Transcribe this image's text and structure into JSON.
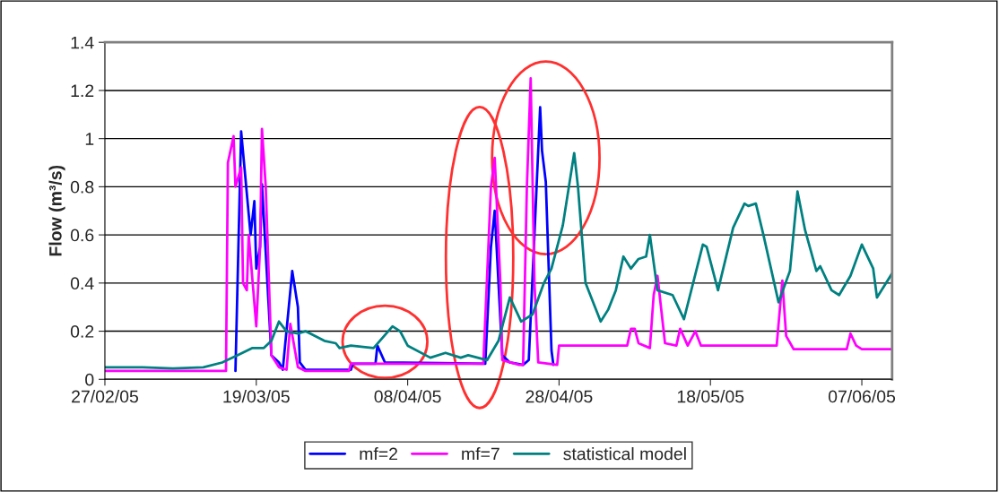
{
  "chart_data": {
    "type": "line",
    "ylabel": "Flow (m³/s)",
    "xlim": [
      "2005-02-27",
      "2005-06-11"
    ],
    "xticks": [
      {
        "value": "2005-02-27",
        "label": "27/02/05"
      },
      {
        "value": "2005-03-19",
        "label": "19/03/05"
      },
      {
        "value": "2005-04-08",
        "label": "08/04/05"
      },
      {
        "value": "2005-04-28",
        "label": "28/04/05"
      },
      {
        "value": "2005-05-18",
        "label": "18/05/05"
      },
      {
        "value": "2005-06-07",
        "label": "07/06/05"
      }
    ],
    "ylim": [
      0,
      1.4
    ],
    "yticks": [
      0,
      0.2,
      0.4,
      0.6,
      0.8,
      1,
      1.2,
      1.4
    ],
    "grid": "y",
    "legend": "bottom",
    "marker": "none",
    "line_style": "solid",
    "series": [
      {
        "name": "mf=2",
        "color": "#0000ff",
        "x": [
          "2005-03-16T06:00",
          "2005-03-17",
          "2005-03-18T06:00",
          "2005-03-18T18:00",
          "2005-03-19",
          "2005-03-19T12:00",
          "2005-03-19T18:00",
          "2005-03-21",
          "2005-03-22",
          "2005-03-22T12:00",
          "2005-03-23T18:00",
          "2005-03-24T12:00",
          "2005-03-24T18:00",
          "2005-03-25T12:00",
          "2005-03-31T12:00",
          "2005-03-31T18:00",
          "2005-04-03T18:00",
          "2005-04-04",
          "2005-04-05",
          "2005-04-18T06:00",
          "2005-04-19",
          "2005-04-19T12:00",
          "2005-04-20T12:00",
          "2005-04-21T12:00",
          "2005-04-23T06:00",
          "2005-04-24",
          "2005-04-24T18:00",
          "2005-04-25T12:00",
          "2005-04-25T18:00",
          "2005-04-26T06:00",
          "2005-04-27",
          "2005-04-27T06:00"
        ],
        "values": [
          0.035,
          1.03,
          0.6,
          0.74,
          0.46,
          0.55,
          0.81,
          0.1,
          0.07,
          0.04,
          0.45,
          0.3,
          0.07,
          0.04,
          0.04,
          0.065,
          0.065,
          0.14,
          0.07,
          0.065,
          0.55,
          0.7,
          0.1,
          0.07,
          0.06,
          0.08,
          0.6,
          1.13,
          0.95,
          0.82,
          0.12,
          0.06
        ]
      },
      {
        "name": "mf=7",
        "color": "#ff00ff",
        "x": [
          "2005-02-27",
          "2005-03-15",
          "2005-03-15T06:00",
          "2005-03-16",
          "2005-03-16T06:00",
          "2005-03-17",
          "2005-03-17T06:00",
          "2005-03-17T18:00",
          "2005-03-18",
          "2005-03-19",
          "2005-03-19T12:00",
          "2005-03-19T18:00",
          "2005-03-20T06:00",
          "2005-03-21",
          "2005-03-22",
          "2005-03-23",
          "2005-03-23T12:00",
          "2005-03-24T12:00",
          "2005-03-25T12:00",
          "2005-03-31T06:00",
          "2005-03-31T12:00",
          "2005-04-18",
          "2005-04-19",
          "2005-04-19T12:00",
          "2005-04-20T06:00",
          "2005-04-20T12:00",
          "2005-04-22T18:00",
          "2005-04-23T06:00",
          "2005-04-23T18:00",
          "2005-04-24T06:00",
          "2005-04-24T18:00",
          "2005-04-25T06:00",
          "2005-04-27T18:00",
          "2005-04-28",
          "2005-05-07",
          "2005-05-07T12:00",
          "2005-05-08",
          "2005-05-08T12:00",
          "2005-05-10",
          "2005-05-10T12:00",
          "2005-05-11",
          "2005-05-12",
          "2005-05-13T12:00",
          "2005-05-14",
          "2005-05-15",
          "2005-05-16",
          "2005-05-16T18:00",
          "2005-05-26T18:00",
          "2005-05-27T12:00",
          "2005-05-28",
          "2005-05-29",
          "2005-06-05",
          "2005-06-05T12:00",
          "2005-06-06T06:00",
          "2005-06-07",
          "2005-06-11"
        ],
        "values": [
          0.035,
          0.035,
          0.9,
          1.01,
          0.8,
          0.88,
          0.4,
          0.37,
          0.6,
          0.22,
          0.55,
          1.04,
          0.8,
          0.1,
          0.05,
          0.04,
          0.23,
          0.05,
          0.035,
          0.035,
          0.065,
          0.065,
          0.8,
          0.92,
          0.4,
          0.08,
          0.06,
          0.06,
          0.8,
          1.25,
          0.4,
          0.07,
          0.06,
          0.14,
          0.14,
          0.21,
          0.21,
          0.15,
          0.13,
          0.35,
          0.43,
          0.15,
          0.14,
          0.21,
          0.14,
          0.2,
          0.14,
          0.14,
          0.41,
          0.18,
          0.125,
          0.125,
          0.19,
          0.14,
          0.125,
          0.125
        ]
      },
      {
        "name": "statistical model",
        "color": "#008080",
        "x": [
          "2005-02-27",
          "2005-03-04",
          "2005-03-08",
          "2005-03-12",
          "2005-03-14T12:00",
          "2005-03-16T12:00",
          "2005-03-18T12:00",
          "2005-03-20",
          "2005-03-21",
          "2005-03-22",
          "2005-03-23",
          "2005-03-24T12:00",
          "2005-03-25T12:00",
          "2005-03-28",
          "2005-03-29T12:00",
          "2005-03-30",
          "2005-03-31T12:00",
          "2005-04-03T12:00",
          "2005-04-06",
          "2005-04-07",
          "2005-04-08",
          "2005-04-11",
          "2005-04-13",
          "2005-04-15",
          "2005-04-16",
          "2005-04-18T12:00",
          "2005-04-20",
          "2005-04-21T12:00",
          "2005-04-23",
          "2005-04-24T12:00",
          "2005-04-26",
          "2005-04-27",
          "2005-04-28T12:00",
          "2005-04-30",
          "2005-04-30T12:00",
          "2005-05-01T12:00",
          "2005-05-03T12:00",
          "2005-05-04T12:00",
          "2005-05-05T12:00",
          "2005-05-06T12:00",
          "2005-05-07T12:00",
          "2005-05-08T12:00",
          "2005-05-09T12:00",
          "2005-05-10",
          "2005-05-11",
          "2005-05-13",
          "2005-05-14T12:00",
          "2005-05-17",
          "2005-05-17T12:00",
          "2005-05-19",
          "2005-05-21",
          "2005-05-22T12:00",
          "2005-05-23",
          "2005-05-24",
          "2005-05-25",
          "2005-05-27",
          "2005-05-28T12:00",
          "2005-05-29T12:00",
          "2005-05-30T12:00",
          "2005-06-01",
          "2005-06-01T12:00",
          "2005-06-03",
          "2005-06-04",
          "2005-06-05T12:00",
          "2005-06-07",
          "2005-06-08T12:00",
          "2005-06-09",
          "2005-06-10",
          "2005-06-11"
        ],
        "values": [
          0.05,
          0.05,
          0.045,
          0.05,
          0.07,
          0.1,
          0.13,
          0.13,
          0.16,
          0.24,
          0.2,
          0.19,
          0.2,
          0.16,
          0.15,
          0.13,
          0.14,
          0.13,
          0.22,
          0.2,
          0.14,
          0.09,
          0.11,
          0.09,
          0.1,
          0.08,
          0.16,
          0.34,
          0.24,
          0.27,
          0.4,
          0.46,
          0.64,
          0.94,
          0.8,
          0.4,
          0.24,
          0.29,
          0.37,
          0.51,
          0.46,
          0.5,
          0.51,
          0.6,
          0.37,
          0.35,
          0.25,
          0.56,
          0.55,
          0.37,
          0.63,
          0.73,
          0.72,
          0.73,
          0.6,
          0.32,
          0.45,
          0.78,
          0.62,
          0.45,
          0.47,
          0.37,
          0.35,
          0.43,
          0.56,
          0.46,
          0.34,
          0.39,
          0.44
        ]
      }
    ]
  }
}
